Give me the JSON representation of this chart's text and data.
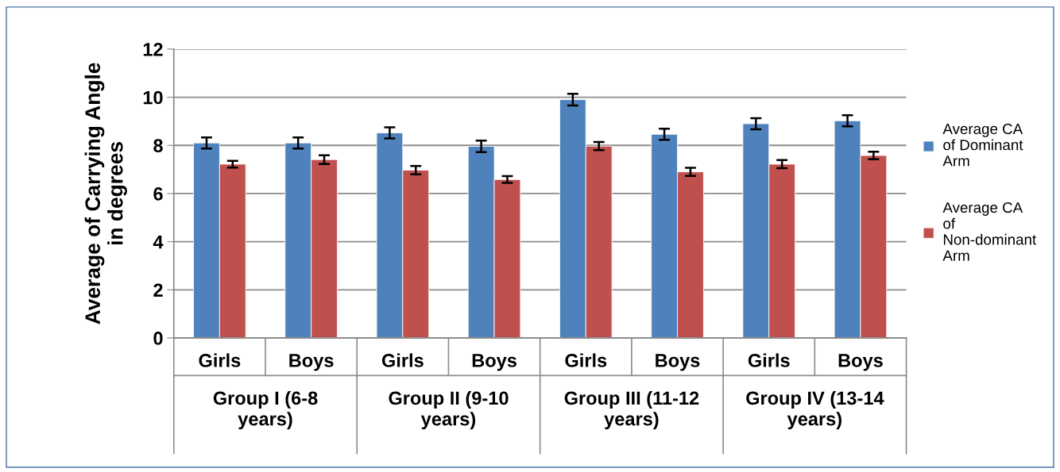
{
  "chart_data": {
    "type": "bar",
    "ylabel": "Average of Carrying Angle in degrees",
    "categories": [
      "Girls",
      "Boys",
      "Girls",
      "Boys",
      "Girls",
      "Boys",
      "Girls",
      "Boys"
    ],
    "series": [
      {
        "name": "Average CA of Dominant Arm",
        "color": "#4f81bd",
        "values": [
          8.1,
          8.1,
          8.52,
          7.96,
          9.9,
          8.46,
          8.9,
          9.02
        ],
        "errors": [
          0.23,
          0.23,
          0.23,
          0.24,
          0.24,
          0.23,
          0.23,
          0.23
        ]
      },
      {
        "name": "Average CA of Non-dominant Arm",
        "color": "#c0504d",
        "values": [
          7.22,
          7.41,
          6.97,
          6.58,
          7.97,
          6.9,
          7.22,
          7.58
        ],
        "errors": [
          0.14,
          0.18,
          0.17,
          0.14,
          0.17,
          0.17,
          0.17,
          0.16
        ]
      }
    ],
    "annotations": [
      "Group I (6-8 years)",
      "Group II (9-10 years)",
      "Group III (11-12 years)",
      "Group IV (13-14 years)"
    ],
    "ylim": [
      0,
      12
    ],
    "yticks": [
      0,
      2,
      4,
      6,
      8,
      10,
      12
    ],
    "grid": "y",
    "legend": "right"
  }
}
